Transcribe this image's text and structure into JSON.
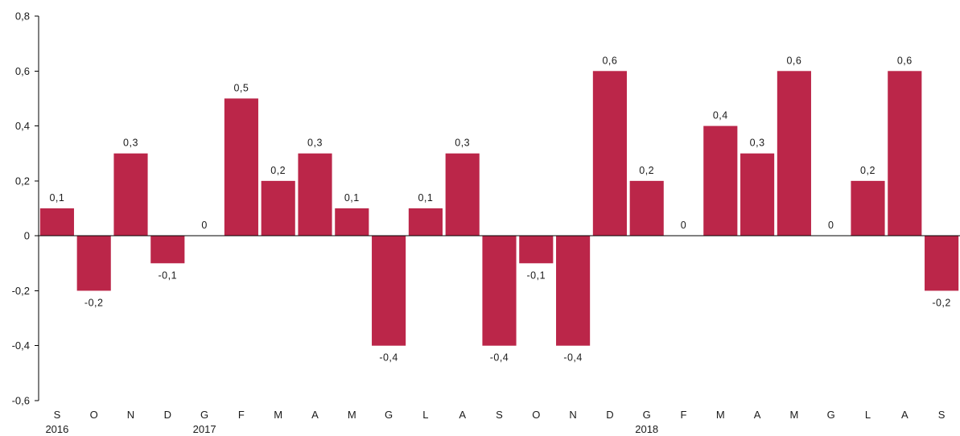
{
  "chart_data": {
    "type": "bar",
    "categories": [
      "S",
      "O",
      "N",
      "D",
      "G",
      "F",
      "M",
      "A",
      "M",
      "G",
      "L",
      "A",
      "S",
      "O",
      "N",
      "D",
      "G",
      "F",
      "M",
      "A",
      "M",
      "G",
      "L",
      "A",
      "S"
    ],
    "year_labels": [
      {
        "index": 0,
        "label": "2016"
      },
      {
        "index": 4,
        "label": "2017"
      },
      {
        "index": 16,
        "label": "2018"
      }
    ],
    "values": [
      0.1,
      -0.2,
      0.3,
      -0.1,
      0,
      0.5,
      0.2,
      0.3,
      0.1,
      -0.4,
      0.1,
      0.3,
      -0.4,
      -0.1,
      -0.4,
      0.6,
      0.2,
      0,
      0.4,
      0.3,
      0.6,
      0,
      0.2,
      0.6,
      -0.2
    ],
    "data_labels": [
      "0,1",
      "-0,2",
      "0,3",
      "-0,1",
      "0",
      "0,5",
      "0,2",
      "0,3",
      "0,1",
      "-0,4",
      "0,1",
      "0,3",
      "-0,4",
      "-0,1",
      "-0,4",
      "0,6",
      "0,2",
      "0",
      "0,4",
      "0,3",
      "0,6",
      "0",
      "0,2",
      "0,6",
      "-0,2"
    ],
    "ylim": [
      -0.6,
      0.8
    ],
    "yticks": [
      -0.6,
      -0.4,
      -0.2,
      0,
      0.2,
      0.4,
      0.6,
      0.8
    ],
    "ytick_labels": [
      "-0,6",
      "-0,4",
      "-0,2",
      "0",
      "0,2",
      "0,4",
      "0,6",
      "0,8"
    ],
    "bar_color": "#bb2649",
    "title": "",
    "xlabel": "",
    "ylabel": "",
    "grid": false
  }
}
